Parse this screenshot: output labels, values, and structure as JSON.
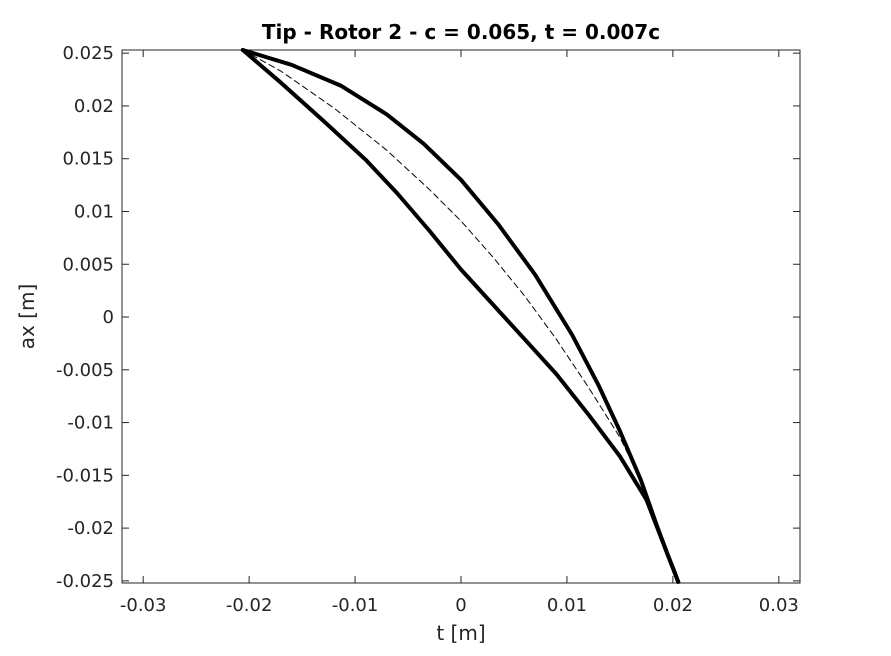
{
  "chart_data": {
    "type": "line",
    "title": "Tip - Rotor 2  - c = 0.065, t = 0.007c",
    "xlabel": "t [m]",
    "ylabel": "ax [m]",
    "xlim": [
      -0.032,
      0.032
    ],
    "ylim": [
      -0.0252,
      0.0253
    ],
    "x_ticks": [
      -0.03,
      -0.02,
      -0.01,
      0,
      0.01,
      0.02,
      0.03
    ],
    "x_tick_labels": [
      "-0.03",
      "-0.02",
      "-0.01",
      "0",
      "0.01",
      "0.02",
      "0.03"
    ],
    "y_ticks": [
      0.025,
      0.02,
      0.015,
      0.01,
      0.005,
      0,
      -0.005,
      -0.01,
      -0.015,
      -0.02,
      -0.025
    ],
    "y_tick_labels": [
      "0.025",
      "0.02",
      "0.015",
      "0.01",
      "0.005",
      "0",
      "-0.005",
      "-0.01",
      "-0.015",
      "-0.02",
      "-0.025"
    ],
    "grid": false,
    "series": [
      {
        "style": "solid-thick",
        "color": "#000000",
        "x": [
          -0.0206,
          -0.017,
          -0.013,
          -0.009,
          -0.006,
          -0.003,
          0.0,
          0.003,
          0.006,
          0.009,
          0.012,
          0.015,
          0.0175,
          0.0205
        ],
        "y": [
          0.0253,
          0.0222,
          0.0186,
          0.0149,
          0.0117,
          0.0082,
          0.0045,
          0.0012,
          -0.0021,
          -0.0054,
          -0.0092,
          -0.0132,
          -0.0173,
          -0.0251
        ]
      },
      {
        "style": "solid-thick",
        "color": "#000000",
        "x": [
          -0.0206,
          -0.016,
          -0.0113,
          -0.007,
          -0.0035,
          0.0,
          0.0035,
          0.007,
          0.0105,
          0.013,
          0.015,
          0.017,
          0.0185,
          0.0195,
          0.0201,
          0.0205
        ],
        "y": [
          0.0253,
          0.0239,
          0.0219,
          0.0192,
          0.0164,
          0.013,
          0.0088,
          0.004,
          -0.0017,
          -0.0065,
          -0.0108,
          -0.0155,
          -0.0198,
          -0.0225,
          -0.024,
          -0.0251
        ]
      },
      {
        "style": "dashed",
        "color": "#000000",
        "x": [
          -0.0206,
          -0.017,
          -0.012,
          -0.007,
          -0.003,
          0.0,
          0.003,
          0.006,
          0.009,
          0.012,
          0.015,
          0.0175,
          0.0205
        ],
        "y": [
          0.0253,
          0.0233,
          0.0198,
          0.0158,
          0.0121,
          0.0091,
          0.0057,
          0.002,
          -0.0021,
          -0.0066,
          -0.0114,
          -0.0166,
          -0.0251
        ]
      }
    ]
  }
}
